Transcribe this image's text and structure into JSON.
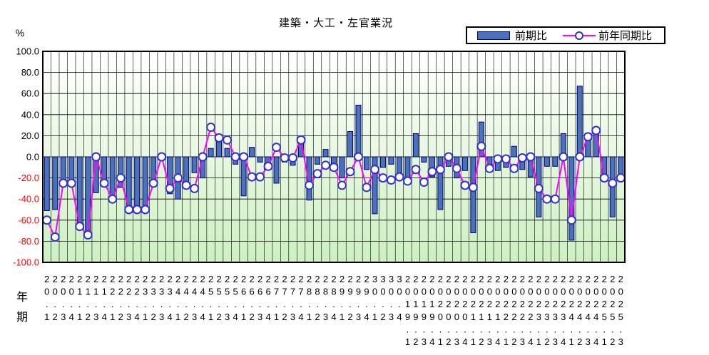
{
  "title": "建築・大工・左官業況",
  "y_axis_unit": "%",
  "x_axis": {
    "year_header": "年",
    "period_header": "期"
  },
  "legend": {
    "bar_label": "前期比",
    "line_label": "前年同期比"
  },
  "colors": {
    "bar_fill": "#4a72b6",
    "bar_border": "#000080",
    "line": "#ff00ff",
    "marker_ring": "#3030cc",
    "marker_fill": "#ffffff",
    "negative_tick_label": "#ff0000",
    "positive_tick_label": "#000000",
    "grid": "#000000",
    "plot_bg_top": "#ffffff",
    "plot_bg_mid": "#eaf8e4",
    "plot_bg_bottom": "#cdf0c2"
  },
  "chart_data": {
    "type": "bar+line",
    "title": "建築・大工・左官業況",
    "categories": [
      "20.1",
      "20.2",
      "20.3",
      "20.4",
      "21.1",
      "21.2",
      "21.3",
      "21.4",
      "22.1",
      "22.2",
      "22.3",
      "22.4",
      "23.1",
      "23.2",
      "23.3",
      "23.4",
      "24.1",
      "24.2",
      "24.3",
      "24.4",
      "25.1",
      "25.2",
      "25.3",
      "25.4",
      "26.1",
      "26.2",
      "26.3",
      "26.4",
      "27.1",
      "27.2",
      "27.3",
      "27.4",
      "28.1",
      "28.2",
      "28.3",
      "28.4",
      "29.1",
      "29.2",
      "29.3",
      "29.4",
      "30.1",
      "30.2",
      "30.3",
      "30.4",
      "2019.1",
      "2019.2",
      "2019.3",
      "2019.4",
      "2020.1",
      "2020.2",
      "2020.3",
      "2020.4",
      "2021.1",
      "2021.2",
      "2021.3",
      "2021.4",
      "2022.1",
      "2022.2",
      "2022.3",
      "2022.4",
      "2023.1",
      "2023.2",
      "2023.3",
      "2023.4",
      "2024.1",
      "2024.2",
      "2024.3",
      "2024.4",
      "2025.1",
      "2025.2",
      "2025.3"
    ],
    "series": [
      {
        "name": "前期比",
        "type": "bar",
        "values": [
          -51,
          -50,
          -26,
          -26,
          -63,
          -73,
          -34,
          -27,
          -40,
          -29,
          -50,
          -50,
          -50,
          -26,
          -2,
          -35,
          -40,
          -26,
          -15,
          -20,
          8,
          17,
          8,
          -7,
          -37,
          9,
          -5,
          -11,
          -25,
          -5,
          -8,
          16,
          -41,
          -7,
          7,
          -10,
          -20,
          24,
          49,
          -12,
          -54,
          -10,
          -7,
          -17,
          -21,
          22,
          -5,
          -19,
          -50,
          -9,
          -20,
          -13,
          -72,
          33,
          -13,
          -13,
          -10,
          10,
          -12,
          -19,
          -57,
          -9,
          -9,
          22,
          -79,
          67,
          18,
          26,
          -20,
          -57,
          -21
        ]
      },
      {
        "name": "前年同期比",
        "type": "line",
        "values": [
          -60,
          -76,
          -25,
          -25,
          -66,
          -74,
          0,
          -25,
          -40,
          -20,
          -50,
          -50,
          -50,
          -25,
          0,
          -30,
          -20,
          -27,
          -30,
          0,
          28,
          18,
          16,
          0,
          0,
          -19,
          -19,
          -9,
          9,
          -1,
          -1,
          16,
          -27,
          -16,
          -8,
          -10,
          -27,
          -14,
          0,
          -29,
          -12,
          -20,
          -22,
          -19,
          -23,
          -12,
          -24,
          -14,
          -12,
          0,
          -11,
          -27,
          -29,
          10,
          -11,
          -2,
          -2,
          -11,
          -1,
          0,
          -30,
          -40,
          -40,
          0,
          -60,
          0,
          19,
          25,
          -20,
          -25,
          -20
        ]
      }
    ],
    "ylim": [
      -100,
      100
    ],
    "ytick_step": 20,
    "y_tick_labels": [
      "100.0",
      "80.0",
      "60.0",
      "40.0",
      "20.0",
      "0.0",
      "-20.0",
      "-40.0",
      "-60.0",
      "-80.0",
      "-100.0"
    ],
    "grid": true,
    "legend_position": "top-right"
  }
}
